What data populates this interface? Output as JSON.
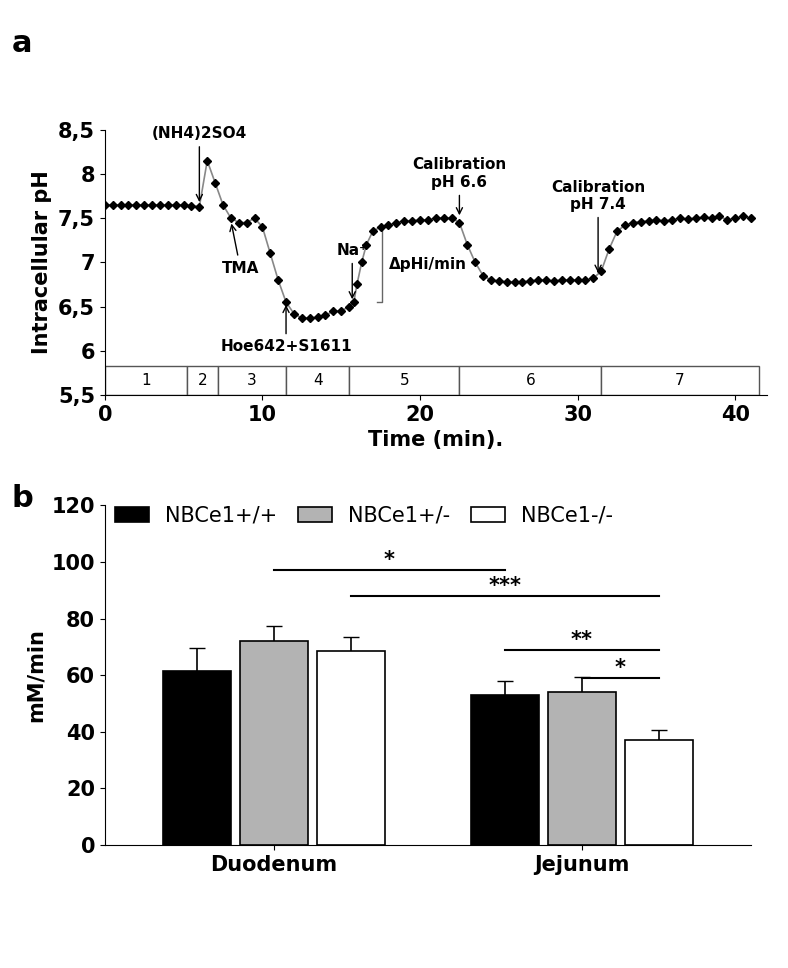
{
  "chart_data": [
    {
      "type": "line",
      "panel": "a",
      "x_label": "Time (min).",
      "y_label": "Intracellular pH",
      "series": [
        {
          "name": "Intracellular pH",
          "color": "#000000",
          "marker": "D",
          "line_style": "solid",
          "x": [
            0,
            0.5,
            1,
            1.5,
            2,
            2.5,
            3,
            3.5,
            4,
            4.5,
            5,
            5.5,
            6,
            6.5,
            7,
            7.5,
            8,
            8.5,
            9,
            9.5,
            10,
            10.5,
            11,
            11.5,
            12,
            12.5,
            13,
            13.5,
            14,
            14.5,
            15,
            15.5,
            15.8,
            16,
            16.3,
            16.6,
            17,
            17.5,
            18,
            18.5,
            19,
            19.5,
            20,
            20.5,
            21,
            21.5,
            22,
            22.5,
            23,
            23.5,
            24,
            24.5,
            25,
            25.5,
            26,
            26.5,
            27,
            27.5,
            28,
            28.5,
            29,
            29.5,
            30,
            30.5,
            31,
            31.5,
            32,
            32.5,
            33,
            33.5,
            34,
            34.5,
            35,
            35.5,
            36,
            36.5,
            37,
            37.5,
            38,
            38.5,
            39,
            39.5,
            40,
            40.5,
            41
          ],
          "values": [
            7.65,
            7.65,
            7.65,
            7.65,
            7.65,
            7.65,
            7.65,
            7.65,
            7.65,
            7.65,
            7.65,
            7.64,
            7.63,
            8.15,
            7.9,
            7.65,
            7.5,
            7.45,
            7.45,
            7.5,
            7.4,
            7.1,
            6.8,
            6.55,
            6.42,
            6.37,
            6.37,
            6.38,
            6.4,
            6.45,
            6.45,
            6.5,
            6.55,
            6.75,
            7.0,
            7.2,
            7.35,
            7.4,
            7.42,
            7.45,
            7.47,
            7.47,
            7.48,
            7.48,
            7.5,
            7.5,
            7.5,
            7.45,
            7.2,
            7.0,
            6.85,
            6.8,
            6.79,
            6.78,
            6.78,
            6.78,
            6.79,
            6.8,
            6.8,
            6.79,
            6.8,
            6.8,
            6.8,
            6.8,
            6.82,
            6.9,
            7.15,
            7.35,
            7.42,
            7.45,
            7.46,
            7.47,
            7.48,
            7.47,
            7.48,
            7.5,
            7.49,
            7.5,
            7.51,
            7.5,
            7.52,
            7.48,
            7.5,
            7.52,
            7.5
          ]
        }
      ],
      "xlim": [
        0,
        42
      ],
      "xticks": [
        0,
        10,
        20,
        30,
        40
      ],
      "ylim": [
        5.5,
        8.5
      ],
      "yticks": [
        {
          "value": 5.5,
          "label": "5,5"
        },
        6,
        {
          "value": 6.5,
          "label": "6,5"
        },
        7,
        {
          "value": 7.5,
          "label": "7,5"
        },
        8,
        {
          "value": 8.5,
          "label": "8,5"
        }
      ],
      "annotations": [
        {
          "text": "(NH4)2SO4",
          "x": 6,
          "y": 7.65
        },
        {
          "text": "TMA",
          "x": 8,
          "y": 7.47
        },
        {
          "text": "Hoe642+S1611",
          "x": 11.5,
          "y": 6.55
        },
        {
          "text": "Na⁺",
          "x": 15.7,
          "y": 6.55
        },
        {
          "text": "Calibration\npH 6.6",
          "x": 22.5,
          "y": 7.5
        },
        {
          "text": "Calibration\npH 7.4",
          "x": 31.3,
          "y": 6.85
        }
      ],
      "bracket": {
        "text": "ΔpHi/min",
        "x": 17.6,
        "low": 6.55,
        "high": 7.4
      },
      "phases": [
        {
          "label": "1",
          "start": 0,
          "end": 5.2
        },
        {
          "label": "2",
          "start": 5.2,
          "end": 7.2
        },
        {
          "label": "3",
          "start": 7.2,
          "end": 11.5
        },
        {
          "label": "4",
          "start": 11.5,
          "end": 15.5
        },
        {
          "label": "5",
          "start": 15.5,
          "end": 22.5
        },
        {
          "label": "6",
          "start": 22.5,
          "end": 31.5
        },
        {
          "label": "7",
          "start": 31.5,
          "end": 41.5
        }
      ]
    },
    {
      "type": "bar",
      "panel": "b",
      "y_label": "mM/min",
      "categories": [
        "Duodenum",
        "Jejunum"
      ],
      "series": [
        {
          "name": "NBCe1+/+",
          "color": "#000000",
          "values": [
            61.5,
            53
          ],
          "errors": [
            8,
            5
          ]
        },
        {
          "name": "NBCe1+/-",
          "color": "#b3b3b3",
          "values": [
            72,
            54
          ],
          "errors": [
            5.5,
            5.5
          ]
        },
        {
          "name": "NBCe1-/-",
          "color": "#ffffff",
          "values": [
            68.5,
            37
          ],
          "errors": [
            5,
            3.5
          ]
        }
      ],
      "ylim": [
        0,
        120
      ],
      "yticks": [
        0,
        20,
        40,
        60,
        80,
        100,
        120
      ],
      "legend": "upper left",
      "significance": [
        {
          "from": [
            0,
            1
          ],
          "to": [
            1,
            0
          ],
          "y": 97,
          "label": "*"
        },
        {
          "from": [
            0,
            2
          ],
          "to": [
            1,
            2
          ],
          "y": 88,
          "label": "***"
        },
        {
          "from": [
            1,
            0
          ],
          "to": [
            1,
            2
          ],
          "y": 69,
          "label": "**"
        },
        {
          "from": [
            1,
            1
          ],
          "to": [
            1,
            2
          ],
          "y": 59,
          "label": "*"
        }
      ]
    }
  ]
}
